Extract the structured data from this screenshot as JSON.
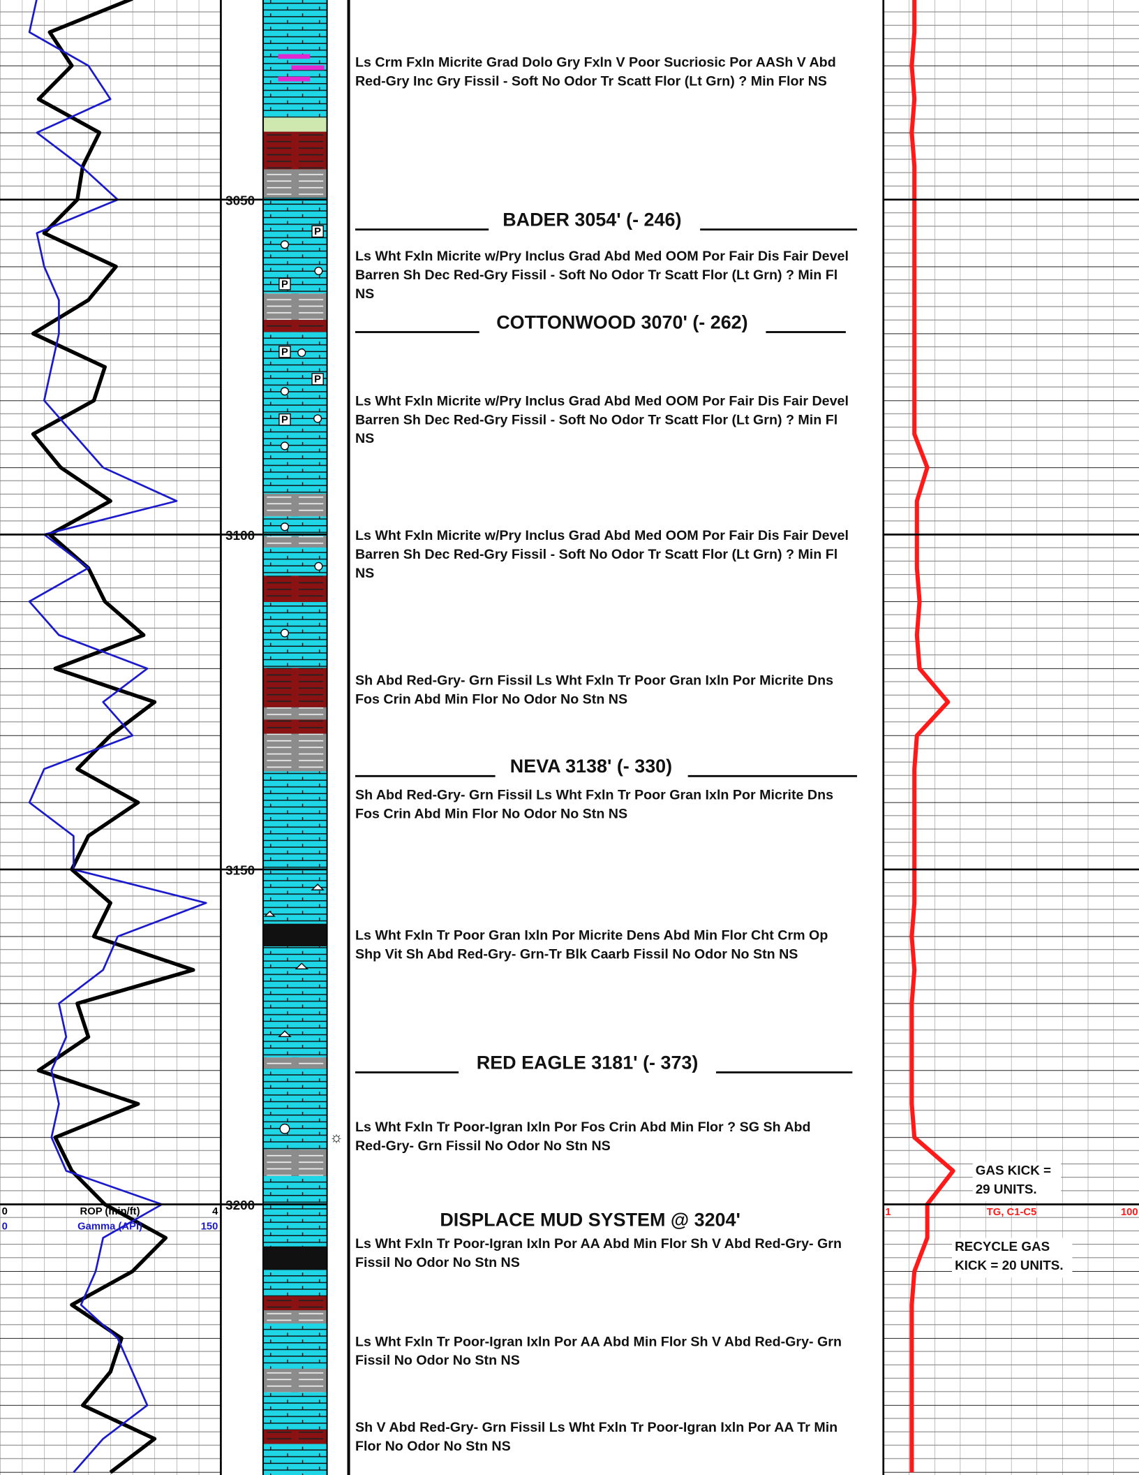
{
  "chart_data": {
    "type": "line",
    "x": [
      3020,
      3025,
      3030,
      3035,
      3040,
      3045,
      3050,
      3055,
      3060,
      3065,
      3070,
      3075,
      3080,
      3085,
      3090,
      3095,
      3100,
      3105,
      3110,
      3115,
      3120,
      3125,
      3130,
      3135,
      3140,
      3145,
      3150,
      3155,
      3160,
      3165,
      3170,
      3175,
      3180,
      3185,
      3190,
      3195,
      3200,
      3205,
      3210,
      3215,
      3220,
      3225,
      3230,
      3235,
      3240
    ],
    "ylim": [
      3020.2,
      3240.4
    ],
    "yticks": [
      3050,
      3100,
      3150,
      3200
    ],
    "series": [
      {
        "name": "ROP (min/ft)",
        "color": "#000000",
        "lim": [
          0,
          4
        ],
        "values": [
          2.4,
          0.9,
          1.3,
          0.7,
          1.8,
          1.5,
          1.4,
          0.8,
          2.1,
          1.6,
          0.6,
          1.9,
          1.7,
          0.6,
          1.1,
          2.0,
          0.9,
          1.6,
          1.9,
          2.6,
          1.0,
          2.8,
          2.0,
          1.4,
          2.5,
          1.6,
          1.3,
          2.0,
          1.7,
          3.5,
          1.4,
          1.6,
          0.7,
          2.5,
          1.0,
          1.3,
          1.9,
          3.0,
          2.4,
          1.3,
          2.2,
          2.0,
          1.5,
          2.8,
          2.0
        ]
      },
      {
        "name": "Gamma (API)",
        "color": "#1a1acc",
        "lim": [
          0,
          150
        ],
        "values": [
          25,
          20,
          60,
          75,
          25,
          55,
          80,
          25,
          30,
          40,
          40,
          35,
          30,
          50,
          70,
          120,
          30,
          60,
          20,
          40,
          100,
          70,
          90,
          30,
          20,
          50,
          50,
          140,
          80,
          70,
          40,
          45,
          35,
          40,
          35,
          45,
          110,
          70,
          65,
          55,
          80,
          90,
          100,
          70,
          50
        ]
      },
      {
        "name": "TG, C1-C5",
        "color": "#ff1a1a",
        "lim": [
          1,
          100
        ],
        "values": [
          13,
          13,
          12,
          13,
          12,
          13,
          13,
          13,
          13,
          13,
          13,
          13,
          13,
          13,
          18,
          14,
          14,
          14,
          15,
          14,
          15,
          26,
          14,
          13,
          13,
          13,
          13,
          13,
          12,
          13,
          12,
          12,
          12,
          12,
          13,
          28,
          18,
          18,
          13,
          12,
          12,
          12,
          12,
          12,
          12
        ]
      }
    ]
  },
  "formation_tops": [
    "BADER 3054' (- 246)",
    "COTTONWOOD 3070' (- 262)",
    "NEVA 3138' (- 330)",
    "RED EAGLE 3181' (- 373)"
  ],
  "header": "DISPLACE MUD SYSTEM @ 3204'",
  "descriptions": [
    [
      "Ls Crm Fxln Micrite Grad Dolo Gry Fxln V Poor Sucriosic Por AASh V Abd",
      "Red-Gry  Inc Gry Fissil - Soft No Odor Tr Scatt Flor (Lt Grn) ? Min Flor NS"
    ],
    [
      "Ls Wht Fxln Micrite w/Pry Inclus Grad Abd Med OOM Por Fair Dis Fair Devel",
      "Barren Sh Dec Red-Gry Fissil - Soft No Odor Tr Scatt Flor (Lt Grn) ? Min Fl",
      "NS"
    ],
    [
      "Ls Wht Fxln Micrite w/Pry Inclus Grad Abd Med OOM Por Fair Dis Fair Devel",
      "Barren Sh Dec Red-Gry Fissil - Soft No Odor Tr Scatt Flor (Lt Grn) ? Min Fl",
      "NS"
    ],
    [
      "Ls Wht Fxln Micrite w/Pry Inclus Grad Abd Med OOM Por Fair Dis Fair Devel",
      "Barren Sh Dec Red-Gry Fissil - Soft No Odor Tr Scatt Flor (Lt Grn) ? Min Fl",
      "NS"
    ],
    [
      "Sh Abd Red-Gry- Grn Fissil  Ls Wht Fxln Tr Poor Gran Ixln Por Micrite Dns",
      "Fos Crin Abd Min Flor No Odor No Stn NS"
    ],
    [
      "Sh Abd Red-Gry- Grn Fissil  Ls Wht Fxln Tr Poor Gran Ixln Por Micrite Dns",
      "Fos Crin Abd Min Flor No Odor No Stn NS"
    ],
    [
      "Ls Wht Fxln Tr Poor Gran Ixln Por Micrite Dens Abd Min Flor Cht Crm Op",
      "Shp Vit  Sh Abd Red-Gry- Grn-Tr Blk Caarb  Fissil No Odor No Stn NS"
    ],
    [
      "Ls Wht Fxln Tr Poor-Igran Ixln Por  Fos Crin Abd Min Flor ? SG Sh Abd",
      "Red-Gry- Grn Fissil No Odor No Stn NS"
    ],
    [
      "Ls Wht Fxln Tr Poor-Igran Ixln Por AA Abd Min Flor Sh V Abd Red-Gry- Grn",
      "Fissil No Odor No Stn NS"
    ],
    [
      "Ls Wht Fxln Tr Poor-Igran Ixln Por AA Abd Min Flor Sh V Abd Red-Gry- Grn",
      "Fissil No Odor No Stn NS"
    ],
    [
      "Sh V Abd Red-Gry- Grn Fissil Ls Wht Fxln Tr Poor-Igran Ixln Por AA Tr Min",
      "Flor No Odor No Stn NS"
    ]
  ],
  "annotations": [
    [
      "GAS KICK =",
      "29 UNITS."
    ],
    [
      "RECYCLE GAS",
      "KICK = 20 UNITS."
    ]
  ]
}
